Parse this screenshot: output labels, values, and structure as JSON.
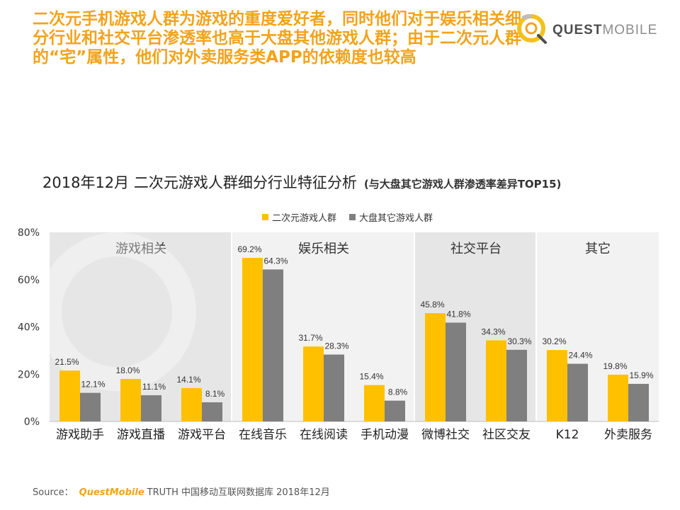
{
  "headline": "二次元手机游戏人群为游戏的重度爱好者，同时他们对于娱乐相关细分行业和社交平台渗透率也高于大盘其他游戏人群；由于二次元人群的“宅”属性，他们对外卖服务类APP的依赖度也较高",
  "logo": {
    "brand_primary": "QUEST",
    "brand_secondary": "MOBILE",
    "watermark_text": "QUESTMOBILE"
  },
  "source": {
    "prefix": "Source：",
    "brand": "QuestMobile",
    "text": "TRUTH 中国移动互联网数据库 2018年12月"
  },
  "colors": {
    "accent": "#f2a31b",
    "series1": "#ffc000",
    "series2": "#7f7f7f",
    "group_bg_dark": "#e6e6e6",
    "group_bg_light": "#f2f2f2"
  },
  "chart_data": {
    "type": "bar",
    "title": "2018年12月 二次元游戏人群细分行业特征分析",
    "subtitle": "(与大盘其它游戏人群渗透率差异TOP15)",
    "categories": [
      "游戏助手",
      "游戏直播",
      "游戏平台",
      "在线音乐",
      "在线阅读",
      "手机动漫",
      "微博社交",
      "社区交友",
      "K12",
      "外卖服务"
    ],
    "series": [
      {
        "name": "二次元游戏人群",
        "values": [
          21.5,
          18.0,
          14.1,
          69.2,
          31.7,
          15.4,
          45.8,
          34.3,
          30.2,
          19.8
        ],
        "labels": [
          "21.5%",
          "18.0%",
          "14.1%",
          "69.2%",
          "31.7%",
          "15.4%",
          "45.8%",
          "34.3%",
          "30.2%",
          "19.8%"
        ]
      },
      {
        "name": "大盘其它游戏人群",
        "values": [
          12.1,
          11.1,
          8.1,
          64.3,
          28.3,
          8.8,
          41.8,
          30.3,
          24.4,
          15.9
        ],
        "labels": [
          "12.1%",
          "11.1%",
          "8.1%",
          "64.3%",
          "28.3%",
          "8.8%",
          "41.8%",
          "30.3%",
          "24.4%",
          "15.9%"
        ]
      }
    ],
    "groups": [
      {
        "label": "游戏相关",
        "from": 0,
        "to": 2
      },
      {
        "label": "娱乐相关",
        "from": 3,
        "to": 5
      },
      {
        "label": "社交平台",
        "from": 6,
        "to": 7
      },
      {
        "label": "其它",
        "from": 8,
        "to": 9
      }
    ],
    "ylim": [
      0,
      80
    ],
    "yticks": [
      0,
      20,
      40,
      60,
      80
    ],
    "ytick_labels": [
      "0%",
      "20%",
      "40%",
      "60%",
      "80%"
    ],
    "legend_position": "top-center",
    "grid": false
  }
}
